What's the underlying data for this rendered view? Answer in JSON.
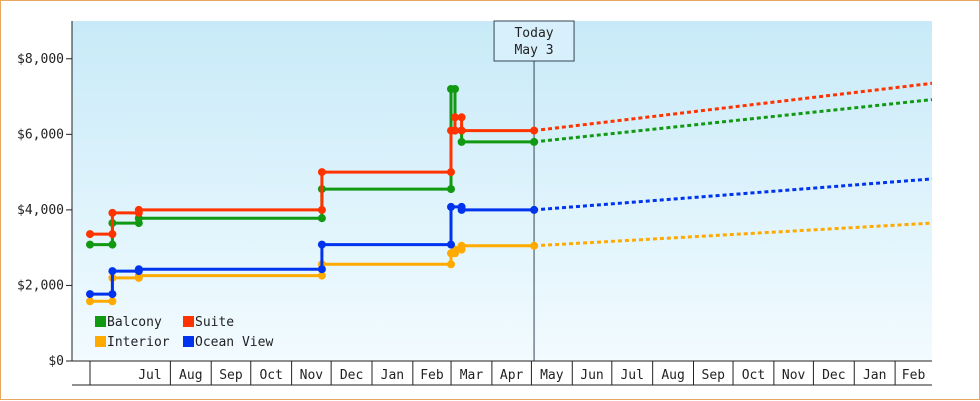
{
  "chart_data": {
    "type": "line",
    "title": "",
    "xlabel": "",
    "ylabel": "",
    "x_axis_months": [
      "Jul",
      "Aug",
      "Sep",
      "Oct",
      "Nov",
      "Dec",
      "Jan",
      "Feb",
      "Mar",
      "Apr",
      "May",
      "Jun",
      "Jul",
      "Aug",
      "Sep",
      "Oct",
      "Nov",
      "Dec",
      "Jan",
      "Feb"
    ],
    "x_start": "2023-06-01",
    "x_end": "2025-03-01",
    "ylim": [
      0,
      9000
    ],
    "yticks": [
      0,
      2000,
      4000,
      6000,
      8000
    ],
    "ytick_labels": [
      "$0",
      "$2,000",
      "$4,000",
      "$6,000",
      "$8,000"
    ],
    "grid": false,
    "legend_position": "bottom-left",
    "today": {
      "label": "Today",
      "date_label": "May 3",
      "date": "2024-05-03"
    },
    "series": [
      {
        "name": "Balcony",
        "color": "#119911",
        "values": [
          [
            "2023-06-01",
            3080
          ],
          [
            "2023-06-18",
            3080
          ],
          [
            "2023-06-18",
            3650
          ],
          [
            "2023-07-08",
            3650
          ],
          [
            "2023-07-08",
            3780
          ],
          [
            "2023-11-24",
            3780
          ],
          [
            "2023-11-24",
            4550
          ],
          [
            "2024-03-01",
            4550
          ],
          [
            "2024-03-01",
            7200
          ],
          [
            "2024-03-04",
            7200
          ],
          [
            "2024-03-04",
            6100
          ],
          [
            "2024-03-09",
            6100
          ],
          [
            "2024-03-09",
            5800
          ],
          [
            "2024-05-03",
            5800
          ]
        ],
        "forecast": [
          [
            "2024-05-03",
            5800
          ],
          [
            "2025-03-01",
            6920
          ]
        ]
      },
      {
        "name": "Suite",
        "color": "#ff3300",
        "values": [
          [
            "2023-06-01",
            3360
          ],
          [
            "2023-06-18",
            3360
          ],
          [
            "2023-06-18",
            3920
          ],
          [
            "2023-07-08",
            3920
          ],
          [
            "2023-07-08",
            4000
          ],
          [
            "2023-11-24",
            4000
          ],
          [
            "2023-11-24",
            5000
          ],
          [
            "2024-03-01",
            5000
          ],
          [
            "2024-03-01",
            6100
          ],
          [
            "2024-03-04",
            6100
          ],
          [
            "2024-03-04",
            6450
          ],
          [
            "2024-03-09",
            6450
          ],
          [
            "2024-03-09",
            6100
          ],
          [
            "2024-05-03",
            6100
          ]
        ],
        "forecast": [
          [
            "2024-05-03",
            6100
          ],
          [
            "2025-03-01",
            7350
          ]
        ]
      },
      {
        "name": "Interior",
        "color": "#ffaa00",
        "values": [
          [
            "2023-06-01",
            1580
          ],
          [
            "2023-06-18",
            1580
          ],
          [
            "2023-06-18",
            2200
          ],
          [
            "2023-07-08",
            2200
          ],
          [
            "2023-07-08",
            2260
          ],
          [
            "2023-11-24",
            2260
          ],
          [
            "2023-11-24",
            2560
          ],
          [
            "2024-03-01",
            2560
          ],
          [
            "2024-03-01",
            2850
          ],
          [
            "2024-03-04",
            2850
          ],
          [
            "2024-03-04",
            2950
          ],
          [
            "2024-03-09",
            2950
          ],
          [
            "2024-03-09",
            3050
          ],
          [
            "2024-05-03",
            3050
          ]
        ],
        "forecast": [
          [
            "2024-05-03",
            3050
          ],
          [
            "2025-03-01",
            3650
          ]
        ]
      },
      {
        "name": "Ocean View",
        "color": "#0033ee",
        "values": [
          [
            "2023-06-01",
            1770
          ],
          [
            "2023-06-18",
            1770
          ],
          [
            "2023-06-18",
            2380
          ],
          [
            "2023-07-08",
            2380
          ],
          [
            "2023-07-08",
            2430
          ],
          [
            "2023-11-24",
            2430
          ],
          [
            "2023-11-24",
            3080
          ],
          [
            "2024-03-01",
            3080
          ],
          [
            "2024-03-01",
            4080
          ],
          [
            "2024-03-09",
            4080
          ],
          [
            "2024-03-09",
            4000
          ],
          [
            "2024-05-03",
            4000
          ]
        ],
        "forecast": [
          [
            "2024-05-03",
            4000
          ],
          [
            "2025-03-01",
            4820
          ]
        ]
      }
    ]
  }
}
